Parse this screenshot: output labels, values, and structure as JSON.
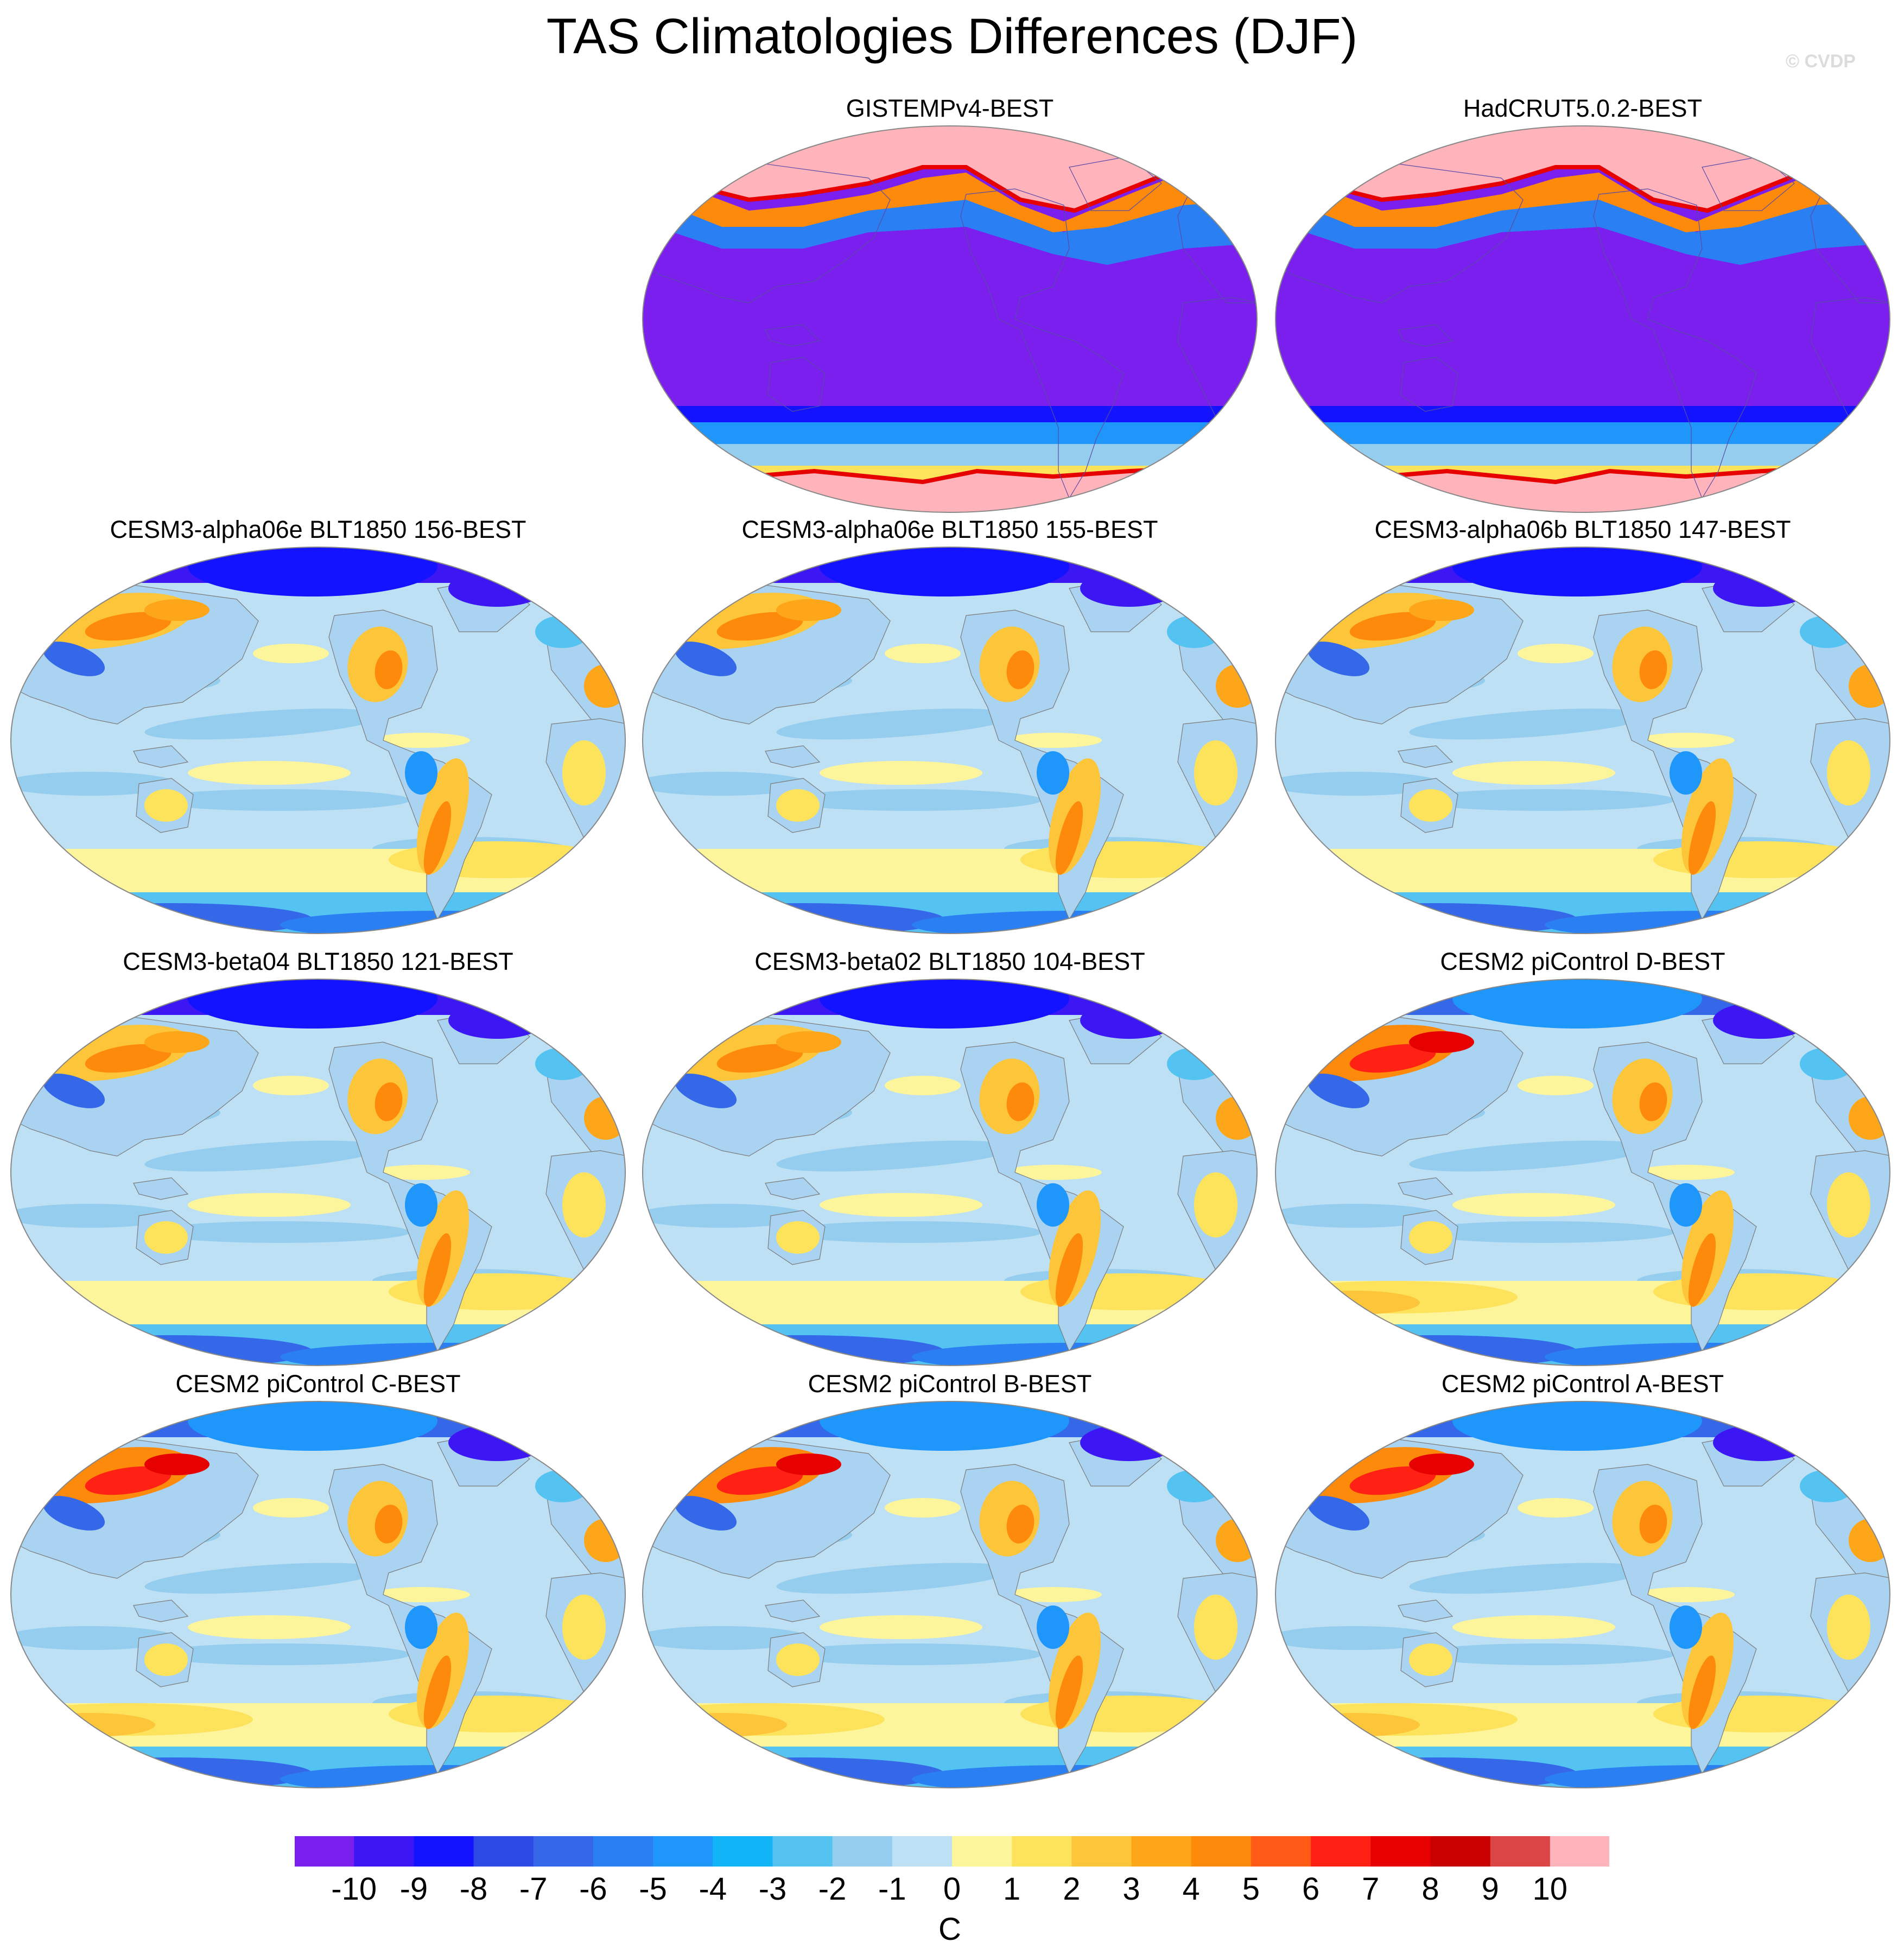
{
  "title": "TAS Climatologies Differences (DJF)",
  "watermark": "© CVDP",
  "map": {
    "projection": "Robinson, Pacific-centred",
    "style": {
      "ocean_neutral": "#bde0f5",
      "ocean_cool": "#95cdee",
      "land": "#a9d3f0",
      "coast": "#7b7b7b",
      "saturated_low": "#7b1fee",
      "saturated_high": "#ffb3ba"
    }
  },
  "panels": [
    {
      "title": "GISTEMPv4-BEST",
      "pattern": "observational",
      "slot": "top-middle"
    },
    {
      "title": "HadCRUT5.0.2-BEST",
      "pattern": "observational",
      "slot": "top-right"
    },
    {
      "title": "CESM3-alpha06e BLT1850 156-BEST",
      "pattern": "model",
      "slot": "row2-left"
    },
    {
      "title": "CESM3-alpha06e BLT1850 155-BEST",
      "pattern": "model",
      "slot": "row2-middle"
    },
    {
      "title": "CESM3-alpha06b BLT1850 147-BEST",
      "pattern": "model",
      "slot": "row2-right"
    },
    {
      "title": "CESM3-beta04 BLT1850 121-BEST",
      "pattern": "model",
      "slot": "row3-left"
    },
    {
      "title": "CESM3-beta02 BLT1850 104-BEST",
      "pattern": "model",
      "slot": "row3-middle"
    },
    {
      "title": "CESM2 piControl D-BEST",
      "pattern": "model-warm",
      "slot": "row3-right"
    },
    {
      "title": "CESM2 piControl C-BEST",
      "pattern": "model-warm",
      "slot": "row4-left"
    },
    {
      "title": "CESM2 piControl B-BEST",
      "pattern": "model-warm",
      "slot": "row4-middle"
    },
    {
      "title": "CESM2 piControl A-BEST",
      "pattern": "model-warm",
      "slot": "row4-right"
    }
  ],
  "colorbar": {
    "units": "C",
    "labels": [
      "-10",
      "-9",
      "-8",
      "-7",
      "-6",
      "-5",
      "-4",
      "-3",
      "-2",
      "-1",
      "0",
      "1",
      "2",
      "3",
      "4",
      "5",
      "6",
      "7",
      "8",
      "9",
      "10"
    ],
    "colors": [
      "#7b1fee",
      "#3c17f4",
      "#1313ff",
      "#2e4ae6",
      "#3468e8",
      "#2a7ff2",
      "#1e96fa",
      "#12b4f8",
      "#55c3f2",
      "#95cdee",
      "#bde0f5",
      "#fdf59b",
      "#fde35c",
      "#fdc53a",
      "#fda61a",
      "#fd8a0b",
      "#ff5b16",
      "#ff2214",
      "#e60000",
      "#c80000",
      "#dc4545",
      "#ffb3ba"
    ]
  }
}
